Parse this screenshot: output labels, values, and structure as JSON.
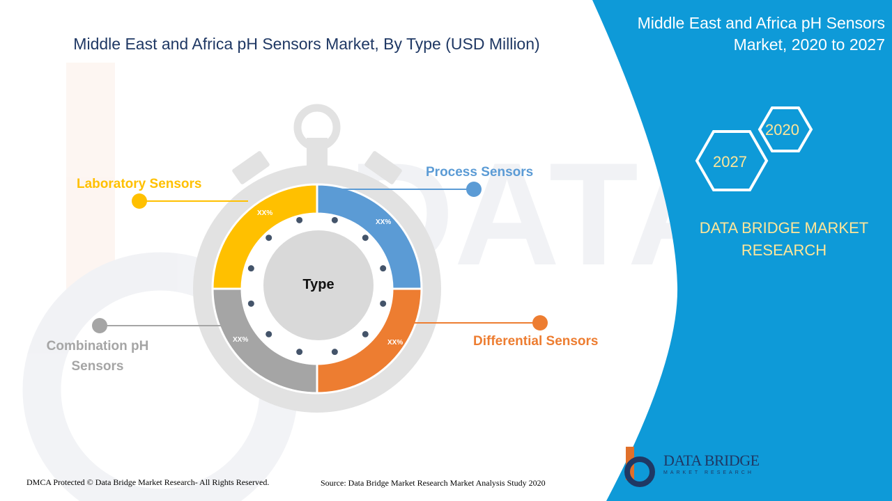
{
  "page": {
    "main_title": "Middle East and Africa pH Sensors Market, By Type (USD Million)",
    "right_panel": {
      "title_line1": "Middle East and Africa pH Sensors",
      "title_line2": "Market, 2020 to 2027",
      "hex_year_1": "2020",
      "hex_year_2": "2027",
      "brand_line1": "DATA BRIDGE MARKET",
      "brand_line2": "RESEARCH"
    },
    "logo": {
      "name": "DATA BRIDGE",
      "subtitle": "MARKET RESEARCH"
    },
    "footer": {
      "copyright": "DMCA Protected © Data Bridge Market Research- All Rights Reserved.",
      "source": "Source: Data Bridge Market Research Market Analysis Study 2020"
    },
    "colors": {
      "laboratory": "#ffc000",
      "process": "#5b9bd5",
      "differential": "#ed7d31",
      "combination": "#a5a5a5",
      "title": "#1f3864",
      "panel": "#0e9ad8"
    }
  },
  "chart_data": {
    "type": "pie",
    "title": "Middle East and Africa pH Sensors Market, By Type (USD Million)",
    "center_label": "Type",
    "categories": [
      "Laboratory Sensors",
      "Process Sensors",
      "Differential Sensors",
      "Combination pH Sensors"
    ],
    "value_labels": [
      "XX%",
      "XX%",
      "XX%",
      "XX%"
    ],
    "colors": [
      "#ffc000",
      "#5b9bd5",
      "#ed7d31",
      "#a5a5a5"
    ]
  }
}
